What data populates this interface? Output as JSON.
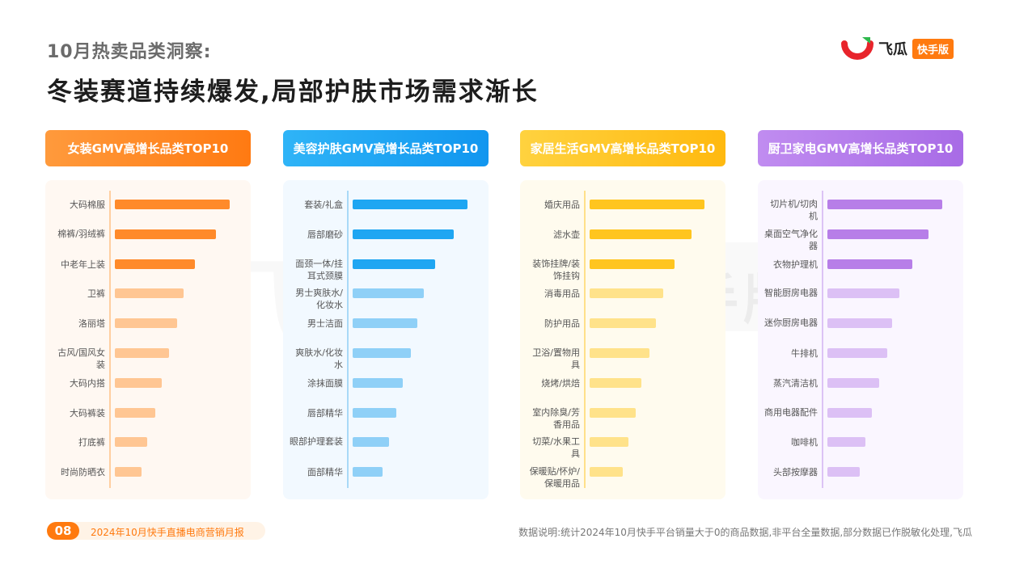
{
  "header": {
    "subtitle": "10月热卖品类洞察:",
    "title": "冬装赛道持续爆发,局部护肤市场需求渐长"
  },
  "logo": {
    "text": "飞瓜",
    "badge": "快手版",
    "colors": [
      "#e8242b",
      "#ff7a0f",
      "#2db84c"
    ]
  },
  "watermark": {
    "text": "飞瓜",
    "badge": "快手版"
  },
  "chart_data": [
    {
      "type": "bar",
      "title": "女装GMV高增长品类TOP10",
      "categories": [
        "大码棉服",
        "棉裤/羽绒裤",
        "中老年上装",
        "卫裤",
        "洛丽塔",
        "古风/国风女装",
        "大码内搭",
        "大码裤装",
        "打底裤",
        "时尚防晒衣"
      ],
      "values": [
        100,
        88,
        70,
        60,
        54,
        47,
        41,
        35,
        28,
        23
      ],
      "colors": {
        "strong": "#ff8a2a",
        "light": "#ffc693",
        "header_from": "#ff9a3c",
        "header_to": "#ff7a12",
        "bg": "#fff8f2",
        "axis": "#ffcfa0"
      }
    },
    {
      "type": "bar",
      "title": "美容护肤GMV高增长品类TOP10",
      "categories": [
        "套装/礼盒",
        "唇部磨砂",
        "面颈一体/挂耳式颈膜",
        "男士爽肤水/化妆水",
        "男士洁面",
        "爽肤水/化妆水",
        "涂抹面膜",
        "唇部精华",
        "眼部护理套装",
        "面部精华"
      ],
      "values": [
        100,
        88,
        72,
        62,
        56,
        51,
        44,
        38,
        32,
        26
      ],
      "colors": {
        "strong": "#1fa6f2",
        "light": "#8fd0f7",
        "header_from": "#2fb4f7",
        "header_to": "#1196ef",
        "bg": "#f2f9ff",
        "axis": "#a9d9f7"
      }
    },
    {
      "type": "bar",
      "title": "家居生活GMV高增长品类TOP10",
      "categories": [
        "婚庆用品",
        "滤水壶",
        "装饰挂牌/装饰挂钩",
        "消毒用品",
        "防护用品",
        "卫浴/置物用具",
        "烧烤/烘焙",
        "室内除臭/芳香用品",
        "切菜/水果工具",
        "保暖贴/怀炉/保暖用品"
      ],
      "values": [
        100,
        89,
        74,
        64,
        58,
        52,
        45,
        40,
        34,
        29
      ],
      "colors": {
        "strong": "#ffc51f",
        "light": "#ffe28a",
        "header_from": "#ffd23f",
        "header_to": "#ffb90f",
        "bg": "#fffbee",
        "axis": "#ffe08a"
      }
    },
    {
      "type": "bar",
      "title": "厨卫家电GMV高增长品类TOP10",
      "categories": [
        "切片机/切肉机",
        "桌面空气净化器",
        "衣物护理机",
        "智能厨房电器",
        "迷你厨房电器",
        "牛排机",
        "蒸汽清洁机",
        "商用电器配件",
        "咖啡机",
        "头部按摩器"
      ],
      "values": [
        100,
        88,
        74,
        63,
        56,
        52,
        45,
        39,
        33,
        28
      ],
      "colors": {
        "strong": "#b77ee8",
        "light": "#dcc0f5",
        "header_from": "#c08cf0",
        "header_to": "#a86be6",
        "bg": "#faf6ff",
        "axis": "#dcc3f5"
      }
    }
  ],
  "footer": {
    "page_number": "08",
    "report_name": "2024年10月快手直播电商营销月报",
    "note": "数据说明:统计2024年10月快手平台销量大于0的商品数据,非平台全量数据,部分数据已作脱敏化处理,飞瓜"
  }
}
